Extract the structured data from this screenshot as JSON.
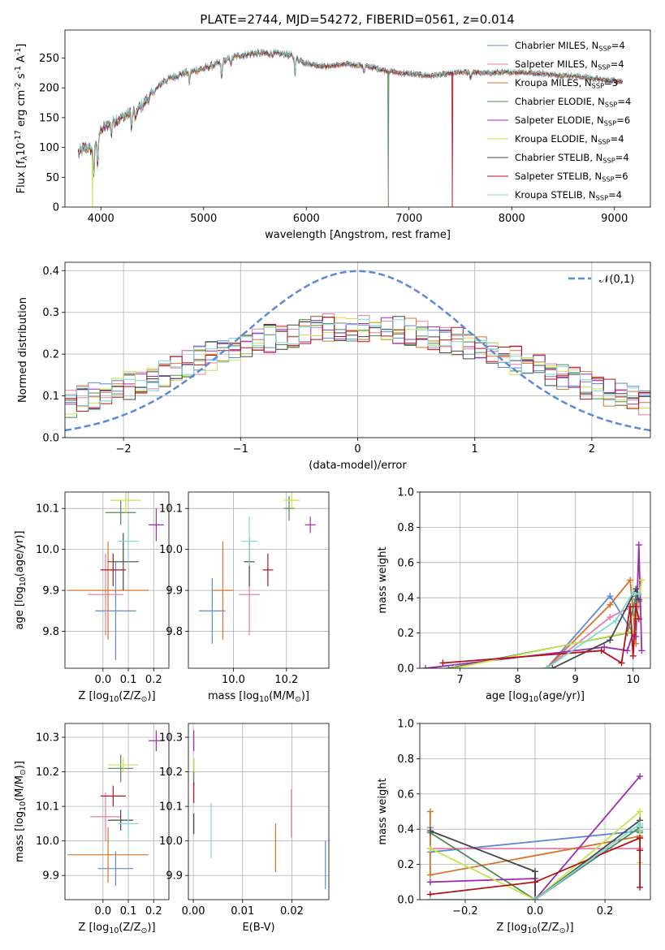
{
  "colors": {
    "c0": "#5b8bd6",
    "c1": "#e47ea8",
    "c2": "#d9732b",
    "c3": "#4f8b55",
    "c4": "#9c2fab",
    "c5": "#c6e44b",
    "c6": "#474747",
    "c7": "#b3131a",
    "c8": "#7fd6dc",
    "gauss": "#5b8bd6"
  },
  "chart_data": [
    {
      "id": "spectrum",
      "type": "line",
      "title": "PLATE=2744, MJD=54272, FIBERID=0561, z=0.014",
      "xlabel": "wavelength [Angstrom, rest frame]",
      "ylabel": "Flux [f$_\\lambda$10$^{-17}$ erg cm$^{-2}$ s$^{-1}$ A$^{-1}$]",
      "xlim": [
        3650,
        9350
      ],
      "ylim": [
        0,
        297
      ],
      "xticks": [
        4000,
        5000,
        6000,
        7000,
        8000,
        9000
      ],
      "yticks": [
        0,
        50,
        100,
        150,
        200,
        250
      ],
      "legend_position": "upper right",
      "series": [
        {
          "name": "Chabrier MILES, N$_{SSP}$=4",
          "color": "c0"
        },
        {
          "name": "Salpeter MILES, N$_{SSP}$=4",
          "color": "c1"
        },
        {
          "name": "Kroupa MILES, N$_{SSP}$=3",
          "color": "c2"
        },
        {
          "name": "Chabrier ELODIE, N$_{SSP}$=4",
          "color": "c3"
        },
        {
          "name": "Salpeter ELODIE, N$_{SSP}$=6",
          "color": "c4"
        },
        {
          "name": "Kroupa ELODIE, N$_{SSP}$=4",
          "color": "c5"
        },
        {
          "name": "Chabrier STELIB, N$_{SSP}$=4",
          "color": "c6"
        },
        {
          "name": "Salpeter STELIB, N$_{SSP}$=6",
          "color": "c7"
        },
        {
          "name": "Kroupa STELIB, N$_{SSP}$=4",
          "color": "c8"
        }
      ],
      "continuum": [
        [
          3780,
          90
        ],
        [
          3850,
          100
        ],
        [
          3920,
          95
        ],
        [
          3950,
          110
        ],
        [
          4000,
          128
        ],
        [
          4100,
          142
        ],
        [
          4200,
          150
        ],
        [
          4300,
          158
        ],
        [
          4400,
          170
        ],
        [
          4500,
          190
        ],
        [
          4600,
          210
        ],
        [
          4700,
          218
        ],
        [
          4800,
          225
        ],
        [
          4900,
          228
        ],
        [
          5000,
          232
        ],
        [
          5100,
          238
        ],
        [
          5200,
          245
        ],
        [
          5300,
          252
        ],
        [
          5400,
          256
        ],
        [
          5500,
          258
        ],
        [
          5600,
          258
        ],
        [
          5700,
          257
        ],
        [
          5800,
          257
        ],
        [
          5900,
          250
        ],
        [
          6000,
          242
        ],
        [
          6100,
          238
        ],
        [
          6200,
          236
        ],
        [
          6300,
          238
        ],
        [
          6400,
          240
        ],
        [
          6500,
          238
        ],
        [
          6600,
          236
        ],
        [
          6700,
          232
        ],
        [
          6800,
          228
        ],
        [
          6900,
          225
        ],
        [
          7000,
          224
        ],
        [
          7100,
          222
        ],
        [
          7200,
          220
        ],
        [
          7300,
          222
        ],
        [
          7400,
          224
        ],
        [
          7500,
          226
        ],
        [
          7600,
          226
        ],
        [
          7700,
          225
        ],
        [
          7800,
          225
        ],
        [
          7900,
          226
        ],
        [
          8000,
          226
        ],
        [
          8100,
          226
        ],
        [
          8200,
          225
        ],
        [
          8300,
          224
        ],
        [
          8400,
          222
        ],
        [
          8500,
          221
        ],
        [
          8600,
          220
        ],
        [
          8700,
          218
        ],
        [
          8800,
          216
        ],
        [
          8900,
          213
        ],
        [
          9000,
          212
        ],
        [
          9080,
          210
        ]
      ],
      "absorption_lines": [
        [
          3933,
          50
        ],
        [
          3968,
          45
        ],
        [
          4102,
          20
        ],
        [
          4300,
          25
        ],
        [
          4340,
          20
        ],
        [
          4861,
          18
        ],
        [
          5175,
          28
        ],
        [
          5270,
          10
        ],
        [
          5890,
          25
        ],
        [
          6563,
          12
        ],
        [
          7600,
          10
        ]
      ],
      "dropouts": [
        {
          "color": "c5",
          "x": 3920
        },
        {
          "color": "c3",
          "x": 6800
        },
        {
          "color": "c7",
          "x": 7420
        }
      ]
    },
    {
      "id": "residuals",
      "type": "line",
      "xlabel": "(data-model)/error",
      "ylabel": "Normed distribution",
      "xlim": [
        -2.5,
        2.5
      ],
      "ylim": [
        0,
        0.42
      ],
      "xticks": [
        -2,
        -1,
        0,
        1,
        2
      ],
      "yticks": [
        0.0,
        0.1,
        0.2,
        0.3,
        0.4
      ],
      "legend": [
        {
          "label": "$\\mathcal{N}(0,1)$",
          "color": "gauss",
          "style": "dashed"
        }
      ],
      "histogram_bin_width": 0.1,
      "histogram_profile": {
        "peak": 0.265,
        "sigma": 1.6,
        "floor": 0.0
      }
    },
    {
      "id": "age_vs_Z",
      "type": "scatter",
      "xlabel": "Z [log$_{10}$($Z/Z_\\odot$)]",
      "ylabel": "age  [log$_{10}$($age/yr$)]",
      "xlim": [
        -0.15,
        0.26
      ],
      "ylim": [
        9.71,
        10.14
      ],
      "xticks": [
        0.0,
        0.1,
        0.2
      ],
      "yticks": [
        9.8,
        9.9,
        10.0,
        10.1
      ],
      "points": [
        {
          "color": "c0",
          "x": 0.05,
          "y": 9.85,
          "xerr": 0.08,
          "yerr": 0.12
        },
        {
          "color": "c1",
          "x": 0.01,
          "y": 9.89,
          "xerr": 0.07,
          "yerr": 0.1
        },
        {
          "color": "c2",
          "x": 0.02,
          "y": 9.9,
          "xerr": 0.16,
          "yerr": 0.12
        },
        {
          "color": "c3",
          "x": 0.07,
          "y": 10.09,
          "xerr": 0.06,
          "yerr": 0.03
        },
        {
          "color": "c4",
          "x": 0.21,
          "y": 10.06,
          "xerr": 0.03,
          "yerr": 0.04
        },
        {
          "color": "c5",
          "x": 0.09,
          "y": 10.12,
          "xerr": 0.06,
          "yerr": 0.03
        },
        {
          "color": "c6",
          "x": 0.08,
          "y": 9.97,
          "xerr": 0.06,
          "yerr": 0.07
        },
        {
          "color": "c7",
          "x": 0.04,
          "y": 9.95,
          "xerr": 0.05,
          "yerr": 0.04
        },
        {
          "color": "c8",
          "x": 0.1,
          "y": 10.02,
          "xerr": 0.04,
          "yerr": 0.05
        }
      ]
    },
    {
      "id": "age_vs_mass",
      "type": "scatter",
      "xlabel": "mass [log$_{10}$($M/M_\\odot$)]",
      "xlim": [
        9.83,
        10.36
      ],
      "ylim": [
        9.71,
        10.14
      ],
      "xticks": [
        10.0,
        10.2
      ],
      "yticks": [
        9.8,
        9.9,
        10.0,
        10.1
      ],
      "points": [
        {
          "color": "c0",
          "x": 9.92,
          "y": 9.85,
          "xerr": 0.05,
          "yerr": 0.08
        },
        {
          "color": "c1",
          "x": 10.06,
          "y": 9.89,
          "xerr": 0.04,
          "yerr": 0.1
        },
        {
          "color": "c2",
          "x": 9.96,
          "y": 9.9,
          "xerr": 0.04,
          "yerr": 0.12
        },
        {
          "color": "c3",
          "x": 10.21,
          "y": 10.1,
          "xerr": 0.02,
          "yerr": 0.03
        },
        {
          "color": "c4",
          "x": 10.29,
          "y": 10.06,
          "xerr": 0.02,
          "yerr": 0.02
        },
        {
          "color": "c5",
          "x": 10.22,
          "y": 10.12,
          "xerr": 0.03,
          "yerr": 0.02
        },
        {
          "color": "c6",
          "x": 10.06,
          "y": 9.97,
          "xerr": 0.02,
          "yerr": 0.06
        },
        {
          "color": "c7",
          "x": 10.13,
          "y": 9.95,
          "xerr": 0.02,
          "yerr": 0.04
        },
        {
          "color": "c8",
          "x": 10.06,
          "y": 10.02,
          "xerr": 0.03,
          "yerr": 0.06
        }
      ]
    },
    {
      "id": "massweight_vs_age",
      "type": "line",
      "xlabel": "age  [log$_{10}$($age/yr$)]",
      "ylabel": "mass weight",
      "xlim": [
        6.3,
        10.3
      ],
      "ylim": [
        0,
        1
      ],
      "xticks": [
        7,
        8,
        9,
        10
      ],
      "yticks": [
        0.0,
        0.2,
        0.4,
        0.6,
        0.8,
        1.0
      ],
      "series": [
        {
          "color": "c0",
          "x": [
            8.5,
            9.6,
            10.0,
            10.05
          ],
          "y": [
            0.0,
            0.41,
            0.2,
            0.39
          ]
        },
        {
          "color": "c1",
          "x": [
            8.5,
            9.6,
            10.05,
            10.1
          ],
          "y": [
            0.0,
            0.29,
            0.36,
            0.35
          ]
        },
        {
          "color": "c2",
          "x": [
            8.5,
            9.6,
            9.95,
            10.05
          ],
          "y": [
            0.0,
            0.36,
            0.5,
            0.14
          ]
        },
        {
          "color": "c3",
          "x": [
            6.8,
            9.9,
            10.05,
            10.1
          ],
          "y": [
            0.0,
            0.2,
            0.41,
            0.38
          ]
        },
        {
          "color": "c4",
          "x": [
            6.4,
            9.5,
            9.9,
            10.0,
            10.05,
            10.1,
            10.15
          ],
          "y": [
            0.0,
            0.12,
            0.1,
            0.2,
            0.18,
            0.7,
            0.1
          ]
        },
        {
          "color": "c5",
          "x": [
            6.9,
            10.0,
            10.05,
            10.15
          ],
          "y": [
            0.0,
            0.21,
            0.29,
            0.5
          ]
        },
        {
          "color": "c6",
          "x": [
            8.6,
            9.6,
            10.05,
            10.1
          ],
          "y": [
            0.0,
            0.16,
            0.45,
            0.39
          ]
        },
        {
          "color": "c7",
          "x": [
            6.7,
            9.45,
            9.8,
            9.95,
            10.0,
            10.05,
            10.1
          ],
          "y": [
            0.03,
            0.1,
            0.03,
            0.35,
            0.07,
            0.35,
            0.28
          ]
        },
        {
          "color": "c8",
          "x": [
            8.5,
            9.7,
            10.0,
            10.1
          ],
          "y": [
            0.0,
            0.27,
            0.43,
            0.42
          ]
        }
      ]
    },
    {
      "id": "mass_vs_Z",
      "type": "scatter",
      "xlabel": "Z [log$_{10}$($Z/Z_\\odot$)]",
      "ylabel": "mass [log$_{10}$($M/M_\\odot$)]",
      "xlim": [
        -0.15,
        0.26
      ],
      "ylim": [
        9.83,
        10.34
      ],
      "xticks": [
        0.0,
        0.1,
        0.2
      ],
      "yticks": [
        9.9,
        10.0,
        10.1,
        10.2,
        10.3
      ],
      "points": [
        {
          "color": "c0",
          "x": 0.05,
          "y": 9.92,
          "xerr": 0.07,
          "yerr": 0.05
        },
        {
          "color": "c1",
          "x": 0.01,
          "y": 10.07,
          "xerr": 0.06,
          "yerr": 0.07
        },
        {
          "color": "c2",
          "x": 0.02,
          "y": 9.96,
          "xerr": 0.16,
          "yerr": 0.08
        },
        {
          "color": "c3",
          "x": 0.07,
          "y": 10.21,
          "xerr": 0.05,
          "yerr": 0.04
        },
        {
          "color": "c4",
          "x": 0.21,
          "y": 10.29,
          "xerr": 0.03,
          "yerr": 0.03
        },
        {
          "color": "c5",
          "x": 0.08,
          "y": 10.22,
          "xerr": 0.06,
          "yerr": 0.02
        },
        {
          "color": "c6",
          "x": 0.07,
          "y": 10.06,
          "xerr": 0.05,
          "yerr": 0.03
        },
        {
          "color": "c7",
          "x": 0.04,
          "y": 10.13,
          "xerr": 0.05,
          "yerr": 0.03
        },
        {
          "color": "c8",
          "x": 0.1,
          "y": 10.05,
          "xerr": 0.04,
          "yerr": 0.04
        }
      ]
    },
    {
      "id": "mass_vs_ebv",
      "type": "scatter",
      "xlabel": "E(B-V)",
      "xlim": [
        -0.001,
        0.0275
      ],
      "ylim": [
        9.83,
        10.34
      ],
      "xticks": [
        0.0,
        0.01,
        0.02
      ],
      "yticks": [
        9.9,
        10.0,
        10.1,
        10.2,
        10.3
      ],
      "points": [
        {
          "color": "c0",
          "x": 0.0268,
          "y": 9.93,
          "xerr": 0.0,
          "yerr": 0.07
        },
        {
          "color": "c1",
          "x": 0.0199,
          "y": 10.08,
          "xerr": 0.0,
          "yerr": 0.07
        },
        {
          "color": "c2",
          "x": 0.0167,
          "y": 9.98,
          "xerr": 0.0,
          "yerr": 0.07
        },
        {
          "color": "c3",
          "x": 0.0001,
          "y": 10.2,
          "xerr": 0.0,
          "yerr": 0.04
        },
        {
          "color": "c4",
          "x": 0.0001,
          "y": 10.29,
          "xerr": 0.0,
          "yerr": 0.03
        },
        {
          "color": "c5",
          "x": 0.0001,
          "y": 10.22,
          "xerr": 0.0,
          "yerr": 0.02
        },
        {
          "color": "c6",
          "x": 0.0001,
          "y": 10.05,
          "xerr": 0.0,
          "yerr": 0.03
        },
        {
          "color": "c7",
          "x": 0.0001,
          "y": 10.14,
          "xerr": 0.0,
          "yerr": 0.03
        },
        {
          "color": "c8",
          "x": 0.0036,
          "y": 10.03,
          "xerr": 0.0,
          "yerr": 0.08
        }
      ]
    },
    {
      "id": "massweight_vs_Z",
      "type": "line",
      "xlabel": "Z [log$_{10}$($Z/Z_\\odot$)]",
      "ylabel": "mass weight",
      "xlim": [
        -0.33,
        0.33
      ],
      "ylim": [
        0,
        1
      ],
      "xticks": [
        -0.2,
        0.0,
        0.2
      ],
      "yticks": [
        0.0,
        0.2,
        0.4,
        0.6,
        0.8,
        1.0
      ],
      "series": [
        {
          "color": "c0",
          "x": [
            -0.3,
            -0.3,
            0.3,
            0.3
          ],
          "y": [
            0.41,
            0.27,
            0.39,
            0.35
          ]
        },
        {
          "color": "c1",
          "x": [
            -0.3,
            0.3,
            0.3
          ],
          "y": [
            0.29,
            0.29,
            0.35
          ]
        },
        {
          "color": "c2",
          "x": [
            -0.3,
            -0.3,
            0.3,
            0.3
          ],
          "y": [
            0.5,
            0.14,
            0.36,
            0.35
          ]
        },
        {
          "color": "c3",
          "x": [
            -0.3,
            0.0,
            0.3,
            0.3
          ],
          "y": [
            0.38,
            0.0,
            0.41,
            0.38
          ]
        },
        {
          "color": "c4",
          "x": [
            -0.3,
            0.0,
            0.0,
            0.3
          ],
          "y": [
            0.1,
            0.12,
            0.0,
            0.7
          ]
        },
        {
          "color": "c5",
          "x": [
            -0.3,
            0.0,
            0.3,
            0.3
          ],
          "y": [
            0.29,
            0.0,
            0.5,
            0.21
          ]
        },
        {
          "color": "c6",
          "x": [
            -0.3,
            0.0,
            0.0,
            0.3
          ],
          "y": [
            0.39,
            0.16,
            0.0,
            0.45
          ]
        },
        {
          "color": "c7",
          "x": [
            -0.3,
            0.0,
            0.3,
            0.3,
            0.3
          ],
          "y": [
            0.03,
            0.1,
            0.35,
            0.07,
            0.28
          ]
        },
        {
          "color": "c8",
          "x": [
            -0.3,
            0.0,
            0.3,
            0.3
          ],
          "y": [
            0.0,
            0.0,
            0.43,
            0.42
          ]
        }
      ]
    }
  ]
}
